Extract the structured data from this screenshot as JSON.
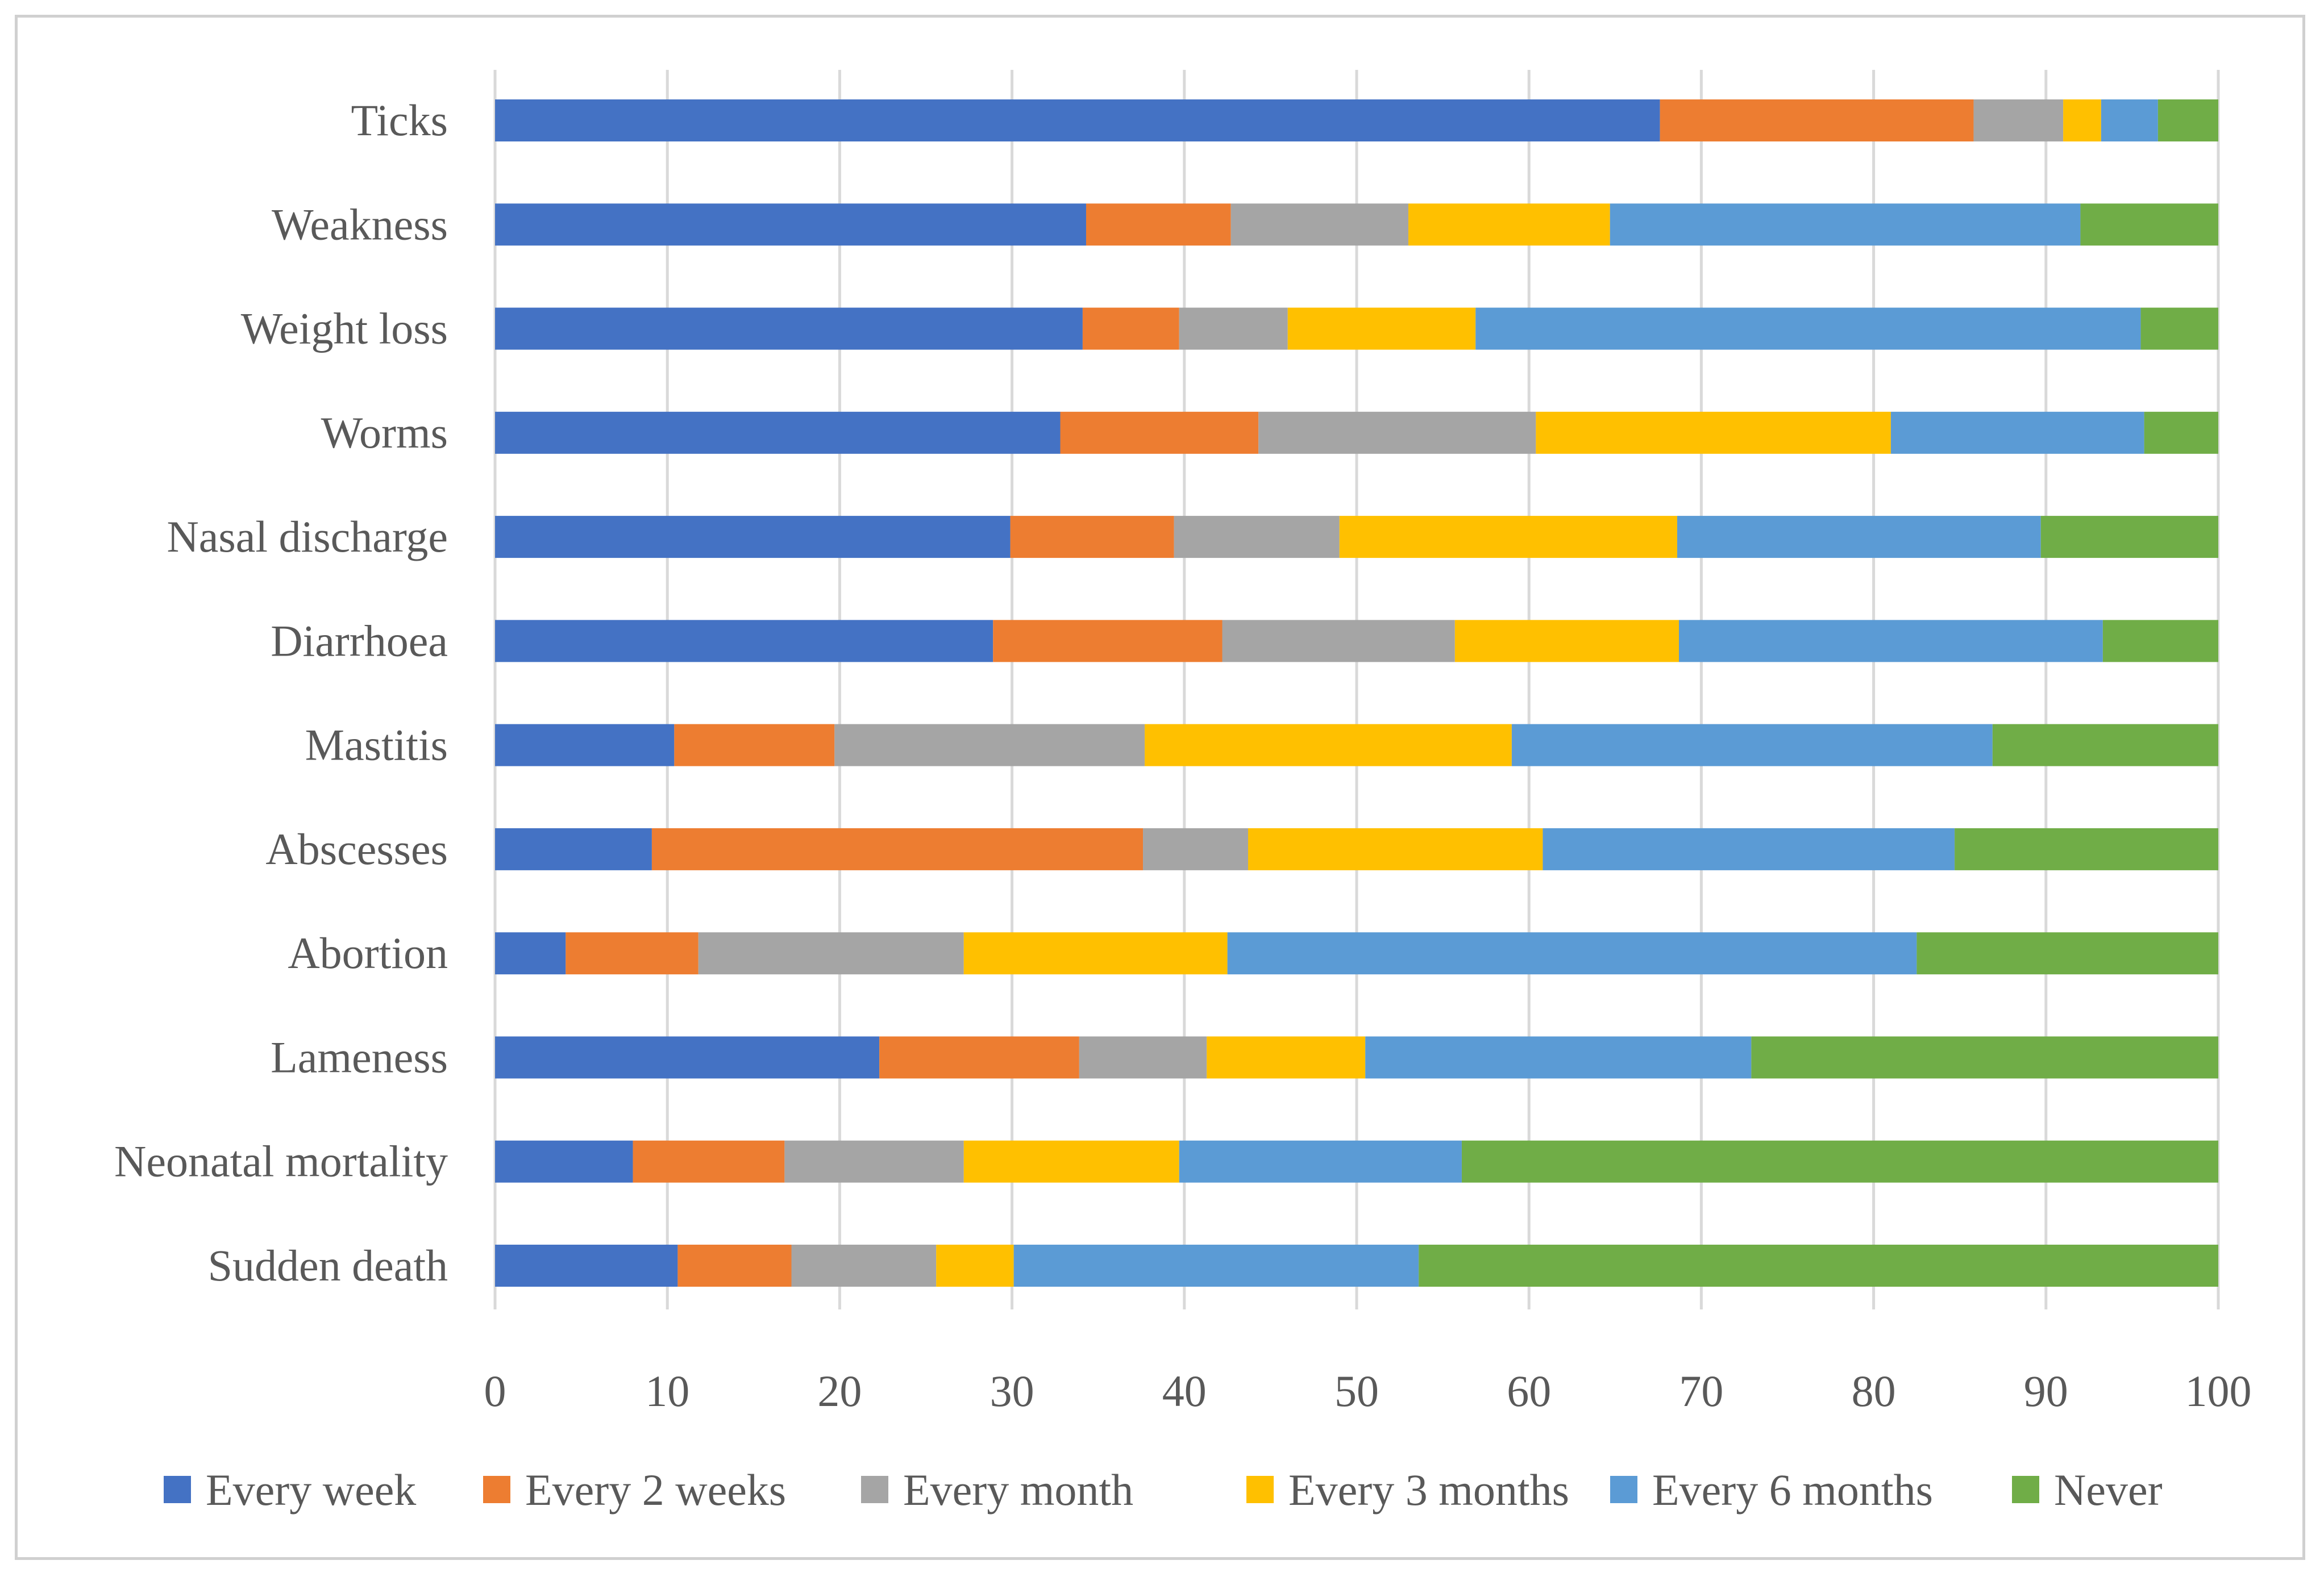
{
  "chart_data": {
    "type": "bar",
    "orientation": "horizontal",
    "stacked": true,
    "title": "",
    "xlabel": "",
    "ylabel": "",
    "xlim": [
      0,
      100
    ],
    "x_ticks": [
      0,
      10,
      20,
      30,
      40,
      50,
      60,
      70,
      80,
      90,
      100
    ],
    "grid": "vertical",
    "legend_position": "bottom",
    "categories": [
      "Ticks",
      "Weakness",
      "Weight loss",
      "Worms",
      "Nasal discharge",
      "Diarrhoea",
      "Mastitis",
      "Abscesses",
      "Abortion",
      "Lameness",
      "Neonatal mortality",
      "Sudden death"
    ],
    "series": [
      {
        "name": "Every week",
        "color": "#4472C4",
        "values": [
          67.6,
          34.3,
          34.1,
          32.8,
          29.9,
          28.9,
          10.4,
          9.1,
          4.1,
          22.3,
          8.0,
          10.6
        ]
      },
      {
        "name": "Every 2 weeks",
        "color": "#ED7D31",
        "values": [
          18.2,
          8.4,
          5.6,
          11.5,
          9.5,
          13.3,
          9.3,
          28.5,
          7.7,
          11.6,
          8.8,
          6.6
        ]
      },
      {
        "name": "Every month",
        "color": "#A5A5A5",
        "values": [
          5.2,
          10.3,
          6.3,
          16.1,
          9.6,
          13.5,
          18.0,
          6.1,
          15.4,
          7.4,
          10.4,
          8.4
        ]
      },
      {
        "name": "Every 3 months",
        "color": "#FFC000",
        "values": [
          2.2,
          11.7,
          10.9,
          20.6,
          19.6,
          13.0,
          21.3,
          17.1,
          15.3,
          9.2,
          12.5,
          4.5
        ]
      },
      {
        "name": "Every 6 months",
        "color": "#5B9BD5",
        "values": [
          3.3,
          27.3,
          38.6,
          14.7,
          21.1,
          24.6,
          27.9,
          23.9,
          40.0,
          22.4,
          16.4,
          23.5
        ]
      },
      {
        "name": "Never",
        "color": "#70AD47",
        "values": [
          3.5,
          8.0,
          4.5,
          4.3,
          10.3,
          6.7,
          13.1,
          15.3,
          17.5,
          27.1,
          43.9,
          46.4
        ]
      }
    ]
  }
}
